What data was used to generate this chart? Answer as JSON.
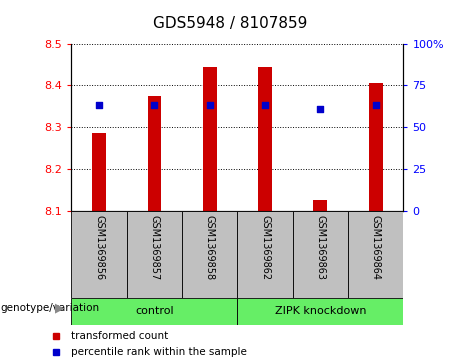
{
  "title": "GDS5948 / 8107859",
  "samples": [
    "GSM1369856",
    "GSM1369857",
    "GSM1369858",
    "GSM1369862",
    "GSM1369863",
    "GSM1369864"
  ],
  "bar_values": [
    8.285,
    8.375,
    8.445,
    8.445,
    8.125,
    8.405
  ],
  "percentile_values": [
    63,
    63,
    63,
    63,
    61,
    63
  ],
  "ymin": 8.1,
  "ymax": 8.5,
  "yticks": [
    8.1,
    8.2,
    8.3,
    8.4,
    8.5
  ],
  "right_yticks": [
    0,
    25,
    50,
    75,
    100
  ],
  "right_tick_labels": [
    "0",
    "25",
    "50",
    "75",
    "100%"
  ],
  "bar_color": "#cc0000",
  "dot_color": "#0000cc",
  "group_color": "#66ee66",
  "group_box_color": "#c0c0c0",
  "groups": [
    {
      "label": "control",
      "start": 0,
      "end": 3
    },
    {
      "label": "ZIPK knockdown",
      "start": 3,
      "end": 6
    }
  ],
  "legend_items": [
    {
      "label": "transformed count",
      "color": "#cc0000"
    },
    {
      "label": "percentile rank within the sample",
      "color": "#0000cc"
    }
  ],
  "bar_width": 0.25,
  "genotype_label": "genotype/variation"
}
